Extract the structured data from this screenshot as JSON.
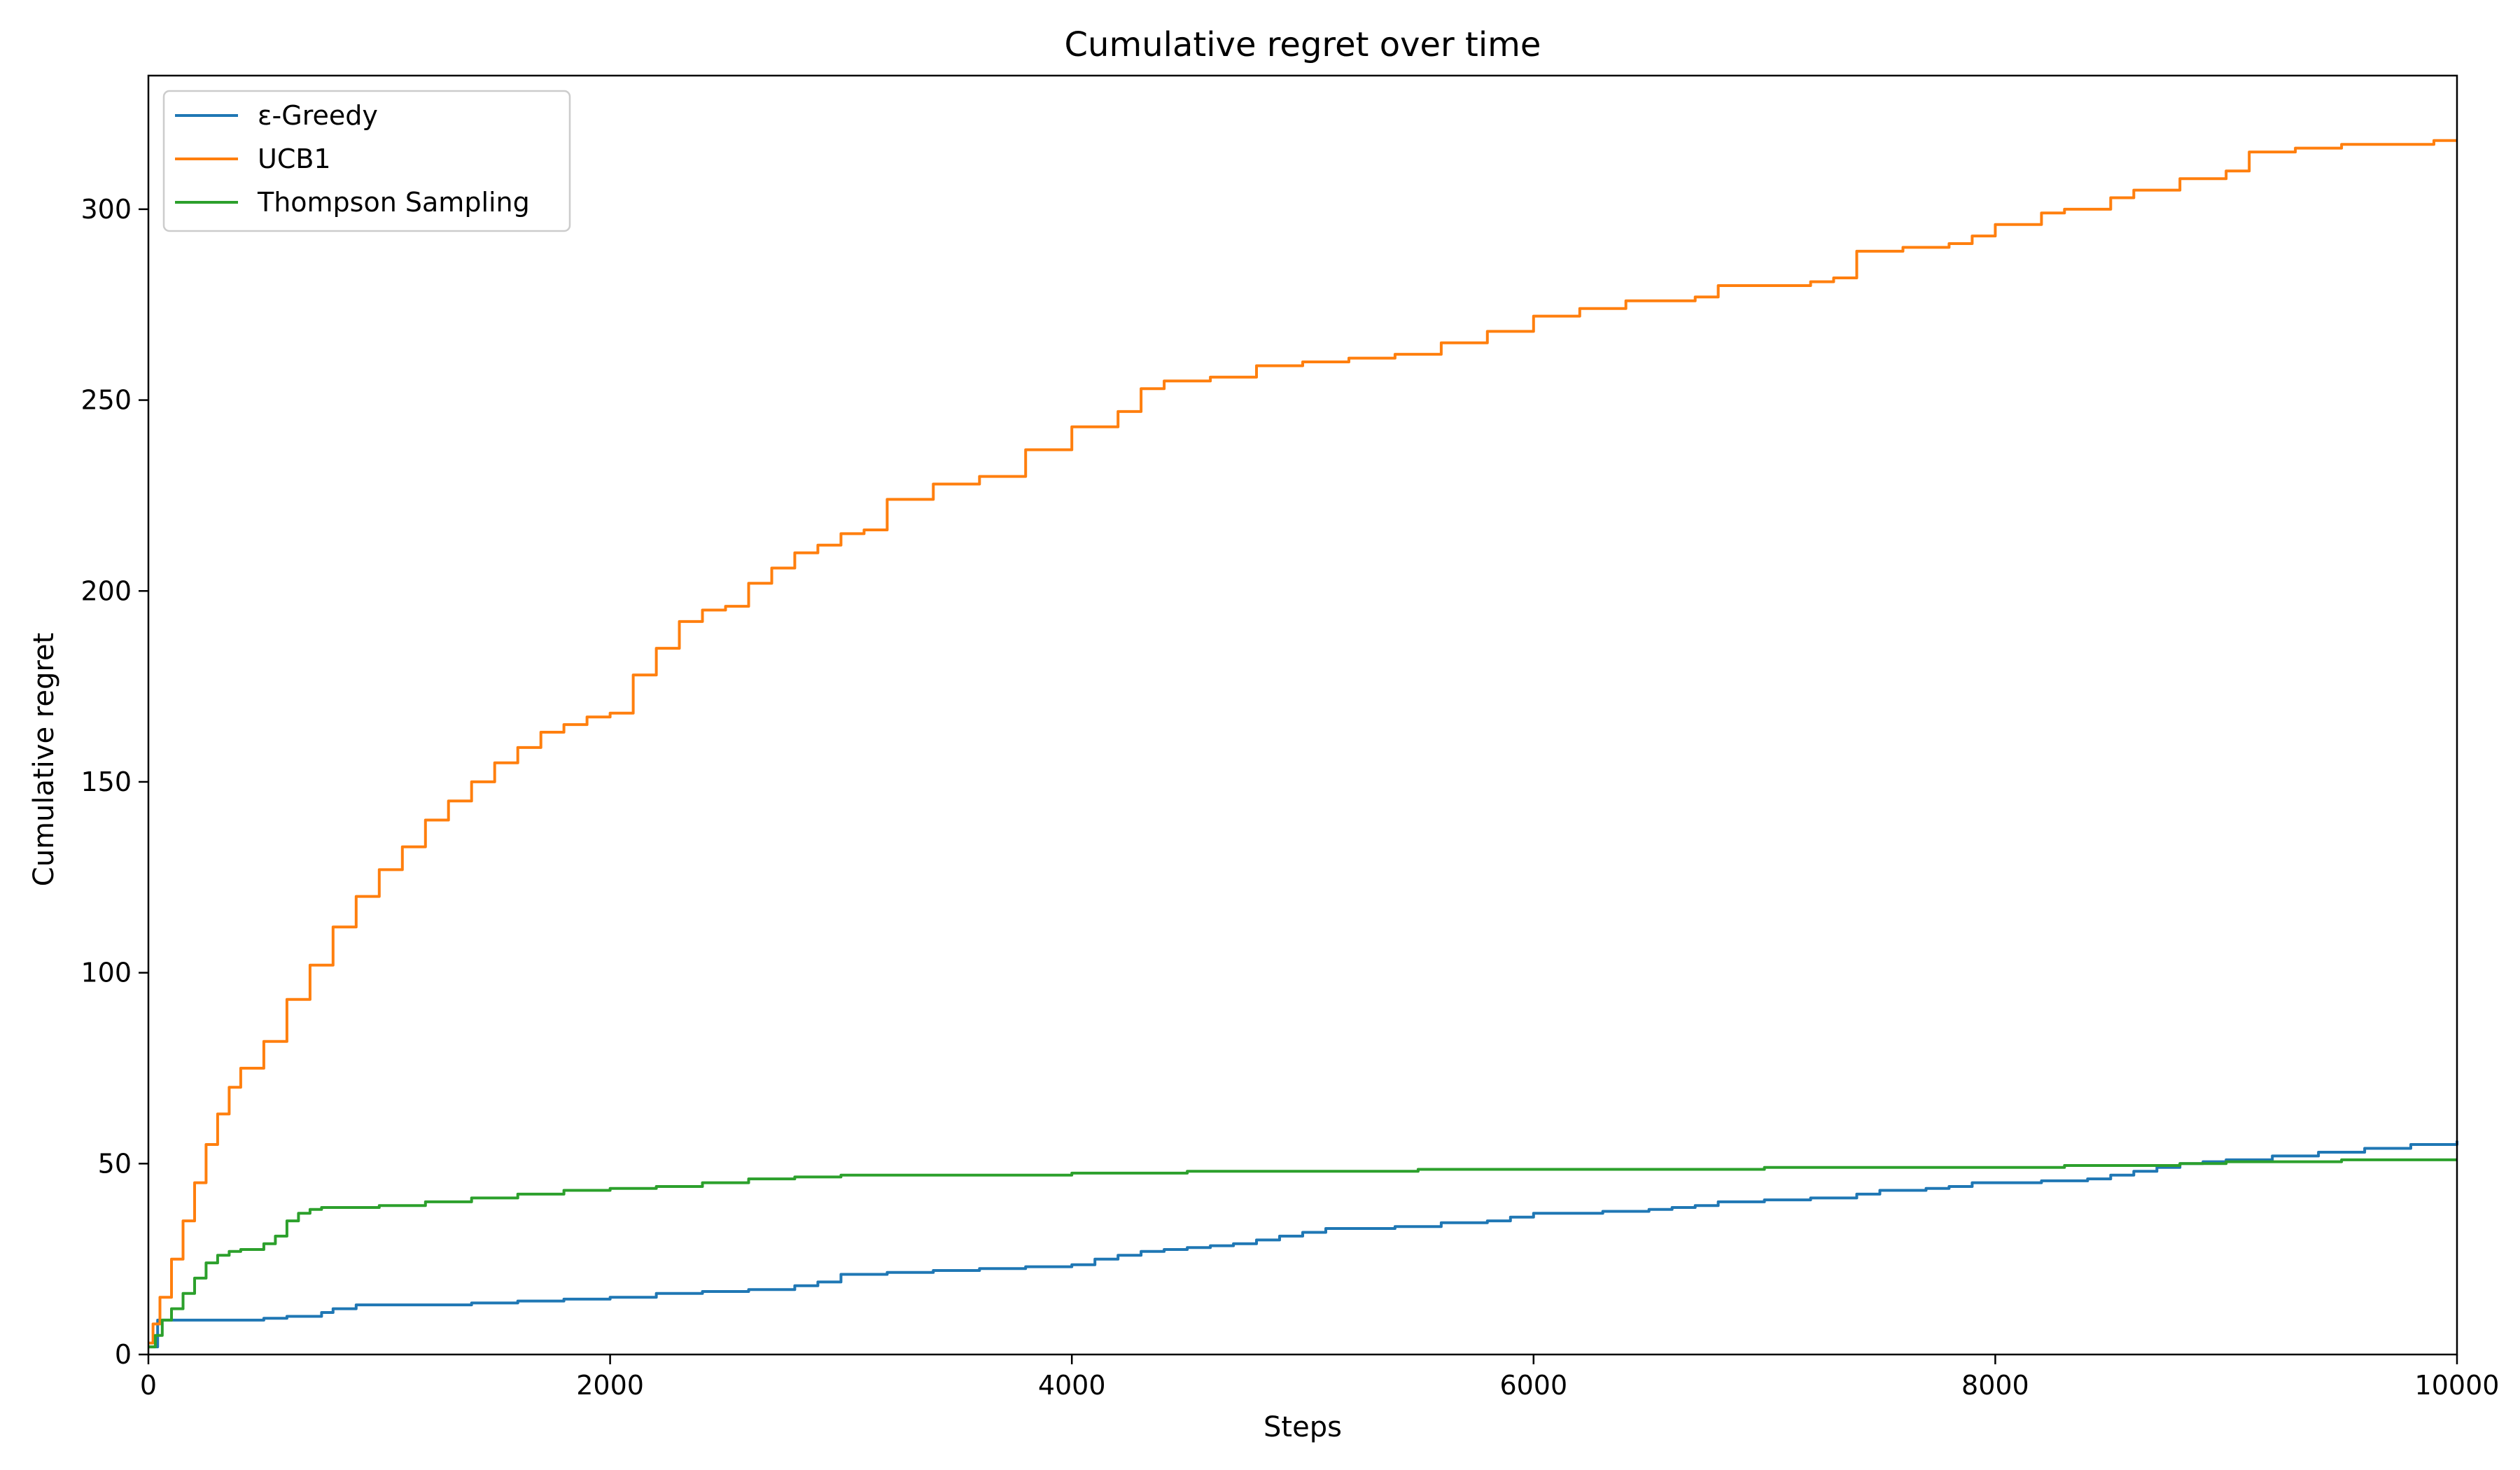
{
  "chart_data": {
    "type": "line",
    "title": "Cumulative regret over time",
    "xlabel": "Steps",
    "ylabel": "Cumulative regret",
    "xlim": [
      0,
      10000
    ],
    "ylim": [
      0,
      335
    ],
    "xticks": [
      0,
      2000,
      4000,
      6000,
      8000,
      10000
    ],
    "yticks": [
      0,
      50,
      100,
      150,
      200,
      250,
      300
    ],
    "grid": false,
    "legend": "top-left",
    "series": [
      {
        "name": "ε-Greedy",
        "color": "#1f77b4",
        "x": [
          0,
          40,
          80,
          200,
          400,
          500,
          600,
          700,
          750,
          800,
          900,
          1000,
          1200,
          1400,
          1600,
          1800,
          2000,
          2200,
          2400,
          2600,
          2700,
          2800,
          2900,
          3000,
          3200,
          3400,
          3600,
          3800,
          4000,
          4100,
          4200,
          4300,
          4400,
          4500,
          4600,
          4700,
          4800,
          4900,
          5000,
          5100,
          5200,
          5400,
          5600,
          5800,
          5900,
          6000,
          6300,
          6500,
          6600,
          6700,
          6800,
          7000,
          7200,
          7400,
          7500,
          7700,
          7800,
          7900,
          8000,
          8200,
          8400,
          8500,
          8600,
          8700,
          8800,
          8900,
          9000,
          9200,
          9400,
          9600,
          9800,
          10000
        ],
        "y": [
          2,
          9,
          9,
          9,
          9,
          9.5,
          10,
          10,
          11,
          12,
          13,
          13,
          13,
          13.5,
          14,
          14.5,
          15,
          16,
          16.5,
          17,
          17,
          18,
          19,
          21,
          21.5,
          22,
          22.5,
          23,
          23.5,
          25,
          26,
          27,
          27.5,
          28,
          28.5,
          29,
          30,
          31,
          32,
          33,
          33,
          33.5,
          34.5,
          35,
          36,
          37,
          37.5,
          38,
          38.5,
          39,
          40,
          40.5,
          41,
          42,
          43,
          43.5,
          44,
          45,
          45,
          45.5,
          46,
          47,
          48,
          49,
          50,
          50.5,
          51,
          52,
          53,
          54,
          55,
          56
        ]
      },
      {
        "name": "UCB1",
        "color": "#ff7f0e",
        "x": [
          0,
          20,
          50,
          100,
          150,
          200,
          250,
          300,
          350,
          400,
          500,
          600,
          700,
          800,
          900,
          1000,
          1100,
          1200,
          1300,
          1400,
          1500,
          1600,
          1700,
          1800,
          1900,
          2000,
          2100,
          2200,
          2300,
          2400,
          2500,
          2600,
          2700,
          2800,
          2900,
          3000,
          3100,
          3200,
          3400,
          3600,
          3800,
          4000,
          4200,
          4300,
          4400,
          4600,
          4800,
          5000,
          5200,
          5400,
          5600,
          5800,
          6000,
          6200,
          6400,
          6600,
          6700,
          6800,
          7000,
          7200,
          7300,
          7400,
          7600,
          7800,
          7900,
          8000,
          8200,
          8300,
          8500,
          8600,
          8800,
          9000,
          9100,
          9300,
          9500,
          9700,
          9900,
          10000
        ],
        "y": [
          3,
          8,
          15,
          25,
          35,
          45,
          55,
          63,
          70,
          75,
          82,
          93,
          102,
          112,
          120,
          127,
          133,
          140,
          145,
          150,
          155,
          159,
          163,
          165,
          167,
          168,
          178,
          185,
          192,
          195,
          196,
          202,
          206,
          210,
          212,
          215,
          216,
          224,
          228,
          230,
          237,
          243,
          247,
          253,
          255,
          256,
          259,
          260,
          261,
          262,
          265,
          268,
          272,
          274,
          276,
          276,
          277,
          280,
          280,
          281,
          282,
          289,
          290,
          291,
          293,
          296,
          299,
          300,
          303,
          305,
          308,
          310,
          315,
          316,
          317,
          317,
          318,
          318
        ]
      },
      {
        "name": "Thompson Sampling",
        "color": "#2ca02c",
        "x": [
          0,
          30,
          60,
          100,
          150,
          200,
          250,
          300,
          350,
          400,
          500,
          550,
          600,
          650,
          700,
          750,
          800,
          1000,
          1200,
          1400,
          1600,
          1800,
          2000,
          2200,
          2400,
          2600,
          2800,
          3000,
          3500,
          4000,
          4500,
          5000,
          5500,
          6000,
          6500,
          7000,
          7500,
          8000,
          8300,
          8600,
          8800,
          9000,
          9500,
          10000
        ],
        "y": [
          2,
          5,
          9,
          12,
          16,
          20,
          24,
          26,
          27,
          27.5,
          29,
          31,
          35,
          37,
          38,
          38.5,
          38.5,
          39,
          40,
          41,
          42,
          43,
          43.5,
          44,
          45,
          46,
          46.5,
          47,
          47,
          47.5,
          48,
          48,
          48.5,
          48.5,
          48.5,
          49,
          49,
          49,
          49.5,
          49.5,
          50,
          50.5,
          51,
          51
        ]
      }
    ]
  }
}
